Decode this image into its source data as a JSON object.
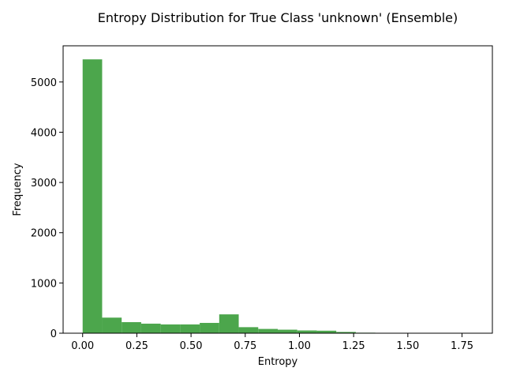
{
  "chart_data": {
    "type": "bar",
    "title": "Entropy Distribution for True Class 'unknown' (Ensemble)",
    "xlabel": "Entropy",
    "ylabel": "Frequency",
    "xlim": [
      -0.09,
      1.89
    ],
    "ylim": [
      0,
      5720
    ],
    "grid": false,
    "bar_color": "#4ca64c",
    "xticks": [
      0.0,
      0.25,
      0.5,
      0.75,
      1.0,
      1.25,
      1.5,
      1.75
    ],
    "xtick_labels": [
      "0.00",
      "0.25",
      "0.50",
      "0.75",
      "1.00",
      "1.25",
      "1.50",
      "1.75"
    ],
    "yticks": [
      0,
      1000,
      2000,
      3000,
      4000,
      5000
    ],
    "ytick_labels": [
      "0",
      "1000",
      "2000",
      "3000",
      "4000",
      "5000"
    ],
    "bins": [
      {
        "x0": 0.0,
        "x1": 0.09,
        "value": 5450
      },
      {
        "x0": 0.09,
        "x1": 0.18,
        "value": 310
      },
      {
        "x0": 0.18,
        "x1": 0.27,
        "value": 220
      },
      {
        "x0": 0.27,
        "x1": 0.36,
        "value": 190
      },
      {
        "x0": 0.36,
        "x1": 0.45,
        "value": 175
      },
      {
        "x0": 0.45,
        "x1": 0.54,
        "value": 175
      },
      {
        "x0": 0.54,
        "x1": 0.63,
        "value": 205
      },
      {
        "x0": 0.63,
        "x1": 0.72,
        "value": 375
      },
      {
        "x0": 0.72,
        "x1": 0.81,
        "value": 120
      },
      {
        "x0": 0.81,
        "x1": 0.9,
        "value": 85
      },
      {
        "x0": 0.9,
        "x1": 0.99,
        "value": 70
      },
      {
        "x0": 0.99,
        "x1": 1.08,
        "value": 55
      },
      {
        "x0": 1.08,
        "x1": 1.17,
        "value": 50
      },
      {
        "x0": 1.17,
        "x1": 1.26,
        "value": 25
      },
      {
        "x0": 1.26,
        "x1": 1.35,
        "value": 10
      },
      {
        "x0": 1.35,
        "x1": 1.44,
        "value": 6
      },
      {
        "x0": 1.44,
        "x1": 1.53,
        "value": 4
      },
      {
        "x0": 1.53,
        "x1": 1.62,
        "value": 2
      },
      {
        "x0": 1.62,
        "x1": 1.71,
        "value": 1
      },
      {
        "x0": 1.71,
        "x1": 1.8,
        "value": 1
      }
    ]
  }
}
